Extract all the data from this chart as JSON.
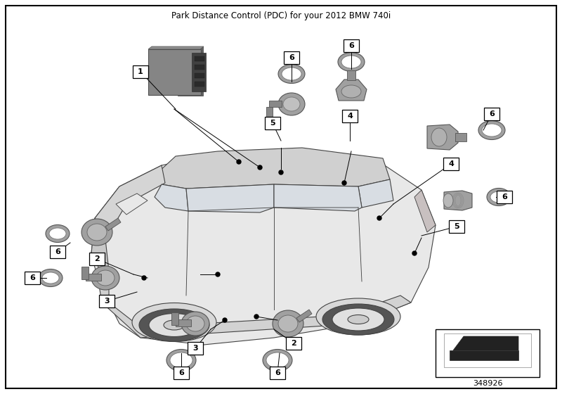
{
  "title": "Park Distance Control (PDC) for your 2012 BMW 740i",
  "bg": "#ffffff",
  "diagram_number": "348926",
  "car": {
    "body_color": "#e8e8e8",
    "outline_color": "#444444",
    "window_color": "#d8dde3",
    "line_width": 0.8
  }
}
